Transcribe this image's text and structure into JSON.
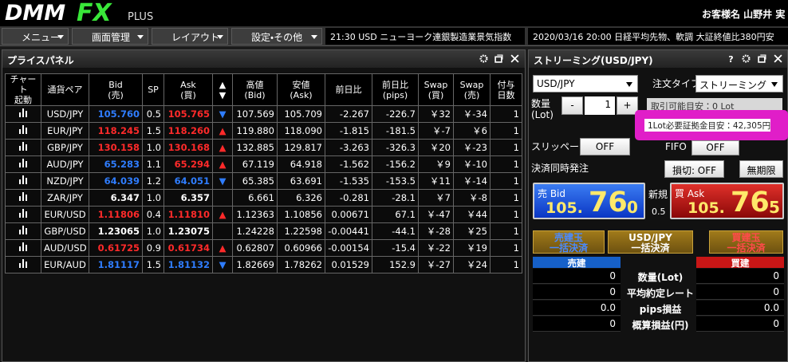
{
  "header": {
    "logo": "DMM",
    "logo_fx": "FX",
    "logo_plus": "PLUS",
    "customer": "お客様名 山野井 実"
  },
  "menu": [
    "メニュー",
    "画面管理",
    "レイアウト",
    "設定・その他"
  ],
  "ticker": [
    "21:30 USD ニューヨーク連銀製造業景気指数",
    "2020/03/16 20:00 日経平均先物、軟調 大証終値比380円安"
  ],
  "price_panel": {
    "title": "プライスパネル",
    "columns": [
      "チャート\n起動",
      "通貨ペア",
      "Bid\n(売)",
      "SP",
      "Ask\n(買)",
      "▲\n▼",
      "高値\n(Bid)",
      "安値\n(Ask)",
      "前日比",
      "前日比\n(pips)",
      "Swap\n(買)",
      "Swap\n(売)",
      "付与\n日数"
    ],
    "rows": [
      {
        "pair": "USD/JPY",
        "bid": "105.760",
        "sp": "0.5",
        "ask": "105.765",
        "arrow": "▼",
        "high": "107.569",
        "low": "105.709",
        "chg": "-2.267",
        "chg_pips": "-226.7",
        "swap_buy": "￥32",
        "swap_sell": "￥-34",
        "days": "1",
        "bid_color": "#2f7dff",
        "ask_color": "#ff2a2a",
        "arrow_color": "#2f7dff"
      },
      {
        "pair": "EUR/JPY",
        "bid": "118.245",
        "sp": "1.5",
        "ask": "118.260",
        "arrow": "▲",
        "high": "119.880",
        "low": "118.090",
        "chg": "-1.815",
        "chg_pips": "-181.5",
        "swap_buy": "￥-7",
        "swap_sell": "￥6",
        "days": "1",
        "bid_color": "#ff2a2a",
        "ask_color": "#ff2a2a",
        "arrow_color": "#ff2a2a"
      },
      {
        "pair": "GBP/JPY",
        "bid": "130.158",
        "sp": "1.0",
        "ask": "130.168",
        "arrow": "▲",
        "high": "132.885",
        "low": "129.817",
        "chg": "-3.263",
        "chg_pips": "-326.3",
        "swap_buy": "￥20",
        "swap_sell": "￥-23",
        "days": "1",
        "bid_color": "#ff2a2a",
        "ask_color": "#ff2a2a",
        "arrow_color": "#ff2a2a"
      },
      {
        "pair": "AUD/JPY",
        "bid": "65.283",
        "sp": "1.1",
        "ask": "65.294",
        "arrow": "▲",
        "high": "67.119",
        "low": "64.918",
        "chg": "-1.562",
        "chg_pips": "-156.2",
        "swap_buy": "￥9",
        "swap_sell": "￥-10",
        "days": "1",
        "bid_color": "#2f7dff",
        "ask_color": "#ff2a2a",
        "arrow_color": "#ff2a2a"
      },
      {
        "pair": "NZD/JPY",
        "bid": "64.039",
        "sp": "1.2",
        "ask": "64.051",
        "arrow": "▼",
        "high": "65.385",
        "low": "63.691",
        "chg": "-1.535",
        "chg_pips": "-153.5",
        "swap_buy": "￥11",
        "swap_sell": "￥-14",
        "days": "1",
        "bid_color": "#2f7dff",
        "ask_color": "#2f7dff",
        "arrow_color": "#2f7dff"
      },
      {
        "pair": "ZAR/JPY",
        "bid": "6.347",
        "sp": "1.0",
        "ask": "6.357",
        "high": "6.661",
        "low": "6.326",
        "chg": "-0.281",
        "chg_pips": "-28.1",
        "swap_buy": "￥7",
        "swap_sell": "￥-8",
        "days": "1",
        "bid_color": "#ffffff",
        "ask_color": "#ffffff"
      },
      {
        "pair": "EUR/USD",
        "bid": "1.11806",
        "sp": "0.4",
        "ask": "1.11810",
        "arrow": "▲",
        "high": "1.12363",
        "low": "1.10856",
        "chg": "0.00671",
        "chg_pips": "67.1",
        "swap_buy": "￥-47",
        "swap_sell": "￥44",
        "days": "1",
        "bid_color": "#ff2a2a",
        "ask_color": "#ff2a2a",
        "arrow_color": "#ff2a2a"
      },
      {
        "pair": "GBP/USD",
        "bid": "1.23065",
        "sp": "1.0",
        "ask": "1.23075",
        "high": "1.24228",
        "low": "1.22598",
        "chg": "-0.00441",
        "chg_pips": "-44.1",
        "swap_buy": "￥-28",
        "swap_sell": "￥25",
        "days": "1",
        "bid_color": "#ffffff",
        "ask_color": "#ffffff"
      },
      {
        "pair": "AUD/USD",
        "bid": "0.61725",
        "sp": "0.9",
        "ask": "0.61734",
        "arrow": "▲",
        "high": "0.62807",
        "low": "0.60966",
        "chg": "-0.00154",
        "chg_pips": "-15.4",
        "swap_buy": "￥-22",
        "swap_sell": "￥19",
        "days": "1",
        "bid_color": "#ff2a2a",
        "ask_color": "#ff2a2a",
        "arrow_color": "#ff2a2a"
      },
      {
        "pair": "EUR/AUD",
        "bid": "1.81117",
        "sp": "1.5",
        "ask": "1.81132",
        "arrow": "▼",
        "high": "1.82669",
        "low": "1.78262",
        "chg": "0.01529",
        "chg_pips": "152.9",
        "swap_buy": "￥-27",
        "swap_sell": "￥24",
        "days": "1",
        "bid_color": "#2f7dff",
        "ask_color": "#2f7dff",
        "arrow_color": "#2f7dff"
      }
    ]
  },
  "streaming": {
    "title": "ストリーミング(USD/JPY)",
    "pair_select": "USD/JPY",
    "order_type_label": "注文タイプ",
    "order_type": "ストリーミング",
    "qty_label": "数量\n(Lot)",
    "minus": "-",
    "qty": "1",
    "plus": "+",
    "available": "取引可能目安：0 Lot",
    "margin_tip": "1Lot必要証拠金目安：42,305円",
    "slippage_label": "スリッページ",
    "slippage": "OFF",
    "fifo_label": "FIFO",
    "fifo": "OFF",
    "settle_label": "決済同時発注",
    "stop_loss": "損切: OFF",
    "expiry": "無期限",
    "bid": {
      "label": "売 Bid",
      "big": "105.",
      "pips": "76",
      "frac": "0"
    },
    "new_label": "新規",
    "spread": "0.5",
    "ask": {
      "label": "買 Ask",
      "big": "105.",
      "pips": "76",
      "frac": "5"
    },
    "buttons": [
      {
        "line1": "売建玉",
        "line2": "一括決済"
      },
      {
        "line1": "USD/JPY",
        "line2": "一括決済"
      },
      {
        "line1": "買建玉",
        "line2": "一括決済"
      }
    ],
    "sell_header": "売建",
    "buy_header": "買建",
    "positions": [
      {
        "sell": "0",
        "label": "数量(Lot)",
        "buy": "0"
      },
      {
        "sell": "0",
        "label": "平均約定レート",
        "buy": "0"
      },
      {
        "sell": "0.0",
        "label": "pips損益",
        "buy": "0.0"
      },
      {
        "sell": "0",
        "label": "概算損益(円)",
        "buy": "0"
      }
    ]
  }
}
